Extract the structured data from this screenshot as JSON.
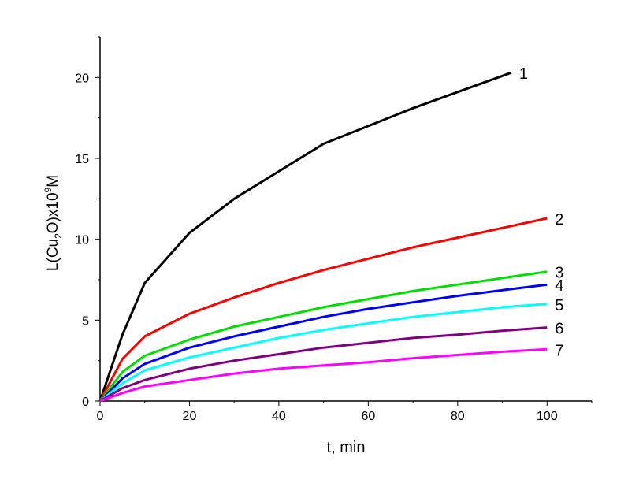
{
  "chart_data": {
    "type": "line",
    "title": "",
    "xlabel": "t, min",
    "ylabel_parts": [
      "L(Cu",
      "2",
      "O)x10",
      "9",
      "M"
    ],
    "xlim": [
      0,
      110
    ],
    "ylim": [
      0,
      22.5
    ],
    "xticks": [
      0,
      20,
      40,
      60,
      80,
      100
    ],
    "yticks": [
      0,
      5,
      10,
      15,
      20
    ],
    "grid": false,
    "series": [
      {
        "name": "1",
        "color": "#000000",
        "x": [
          0,
          5,
          10,
          20,
          30,
          40,
          50,
          60,
          70,
          80,
          92
        ],
        "y": [
          0,
          4.1,
          7.3,
          10.4,
          12.5,
          14.2,
          15.9,
          17.0,
          18.1,
          19.1,
          20.3
        ]
      },
      {
        "name": "2",
        "color": "#ff0000",
        "x": [
          0,
          5,
          10,
          20,
          30,
          40,
          50,
          60,
          70,
          80,
          90,
          100
        ],
        "y": [
          0,
          2.6,
          4.0,
          5.4,
          6.4,
          7.3,
          8.1,
          8.8,
          9.5,
          10.1,
          10.7,
          11.3
        ]
      },
      {
        "name": "3",
        "color": "#00e000",
        "x": [
          0,
          5,
          10,
          20,
          30,
          40,
          50,
          60,
          70,
          80,
          90,
          100
        ],
        "y": [
          0,
          1.8,
          2.8,
          3.8,
          4.6,
          5.2,
          5.8,
          6.3,
          6.8,
          7.2,
          7.6,
          8.0
        ]
      },
      {
        "name": "4",
        "color": "#0000ff",
        "x": [
          0,
          5,
          10,
          20,
          30,
          40,
          50,
          60,
          70,
          80,
          90,
          100
        ],
        "y": [
          0,
          1.4,
          2.3,
          3.3,
          4.0,
          4.6,
          5.2,
          5.7,
          6.1,
          6.5,
          6.85,
          7.2
        ]
      },
      {
        "name": "5",
        "color": "#00ffff",
        "x": [
          0,
          5,
          10,
          20,
          30,
          40,
          50,
          60,
          70,
          80,
          90,
          100
        ],
        "y": [
          0,
          1.1,
          1.9,
          2.7,
          3.3,
          3.9,
          4.4,
          4.8,
          5.2,
          5.5,
          5.8,
          6.0
        ]
      },
      {
        "name": "6",
        "color": "#800080",
        "x": [
          0,
          5,
          10,
          20,
          30,
          40,
          50,
          60,
          70,
          80,
          90,
          100
        ],
        "y": [
          0,
          0.8,
          1.3,
          2.0,
          2.5,
          2.9,
          3.3,
          3.6,
          3.9,
          4.1,
          4.35,
          4.55
        ]
      },
      {
        "name": "7",
        "color": "#ff00ff",
        "x": [
          0,
          5,
          10,
          20,
          30,
          40,
          50,
          60,
          70,
          80,
          90,
          100
        ],
        "y": [
          0,
          0.5,
          0.9,
          1.3,
          1.7,
          2.0,
          2.2,
          2.4,
          2.65,
          2.85,
          3.05,
          3.2
        ]
      }
    ]
  }
}
